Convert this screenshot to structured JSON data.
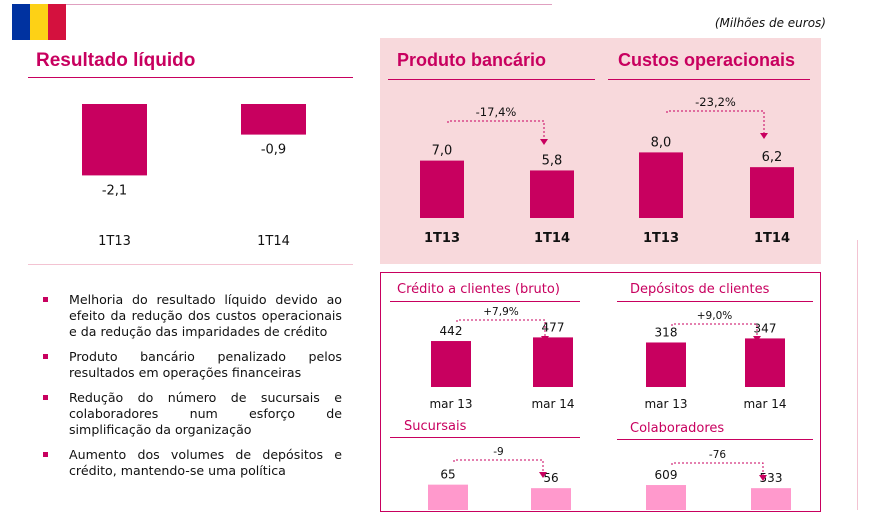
{
  "header": {
    "units": "(Milhões de euros)",
    "flag_colors": [
      "#0032a0",
      "#fdd116",
      "#d4113e"
    ]
  },
  "colors": {
    "accent": "#c8005f",
    "light": "#ff99cc",
    "panel_bg": "#f8d9dc"
  },
  "bullets": [
    "Melhoria do resultado líquido devido ao efeito da redução dos custos operacionais e da redução das imparidades de crédito",
    "Produto bancário penalizado pelos resultados em operações financeiras",
    "Redução do número de sucursais e colaboradores num esforço de simplificação da organização",
    "Aumento dos volumes de depósitos e crédito, mantendo-se uma política"
  ],
  "chart_data": [
    {
      "id": "resultado",
      "type": "bar",
      "title": "Resultado líquido",
      "categories": [
        "1T13",
        "1T14"
      ],
      "values": [
        -2.1,
        -0.9
      ],
      "labels": [
        "-2,1",
        "-0,9"
      ]
    },
    {
      "id": "produto",
      "type": "bar",
      "title": "Produto bancário",
      "categories": [
        "1T13",
        "1T14"
      ],
      "values": [
        7.0,
        5.8
      ],
      "labels": [
        "7,0",
        "5,8"
      ],
      "change": "-17,4%"
    },
    {
      "id": "custos",
      "type": "bar",
      "title": "Custos operacionais",
      "categories": [
        "1T13",
        "1T14"
      ],
      "values": [
        8.0,
        6.2
      ],
      "labels": [
        "8,0",
        "6,2"
      ],
      "change": "-23,2%"
    },
    {
      "id": "credito",
      "type": "bar",
      "title": "Crédito a clientes (bruto)",
      "categories": [
        "mar 13",
        "mar 14"
      ],
      "values": [
        442,
        477
      ],
      "labels": [
        "442",
        "477"
      ],
      "change": "+7,9%"
    },
    {
      "id": "depositos",
      "type": "bar",
      "title": "Depósitos de clientes",
      "categories": [
        "mar 13",
        "mar 14"
      ],
      "values": [
        318,
        347
      ],
      "labels": [
        "318",
        "347"
      ],
      "change": "+9,0%"
    },
    {
      "id": "sucursais",
      "type": "bar",
      "title": "Sucursais",
      "categories": [],
      "values": [
        65,
        56
      ],
      "labels": [
        "65",
        "56"
      ],
      "change": "-9"
    },
    {
      "id": "colaboradores",
      "type": "bar",
      "title": "Colaboradores",
      "categories": [],
      "values": [
        609,
        533
      ],
      "labels": [
        "609",
        "533"
      ],
      "change": "-76"
    }
  ]
}
